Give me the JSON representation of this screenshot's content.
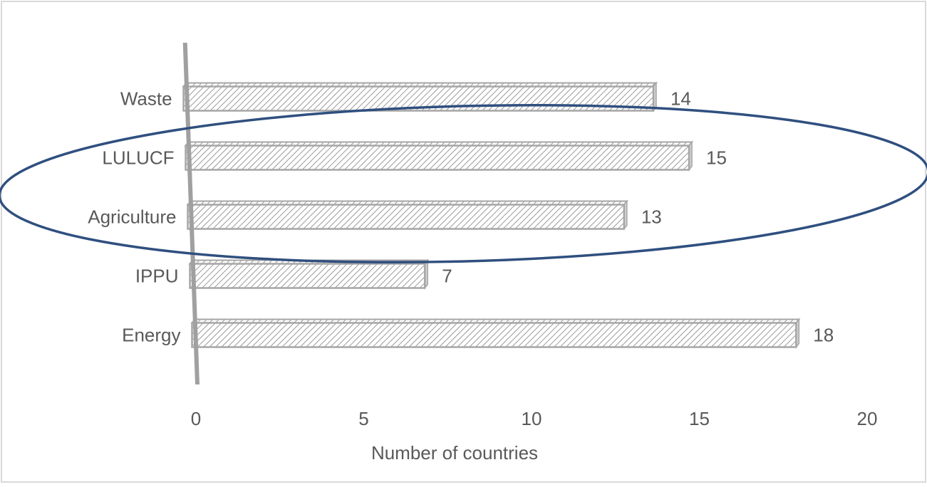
{
  "chart_data": {
    "type": "bar",
    "orientation": "horizontal",
    "categories": [
      "Energy",
      "IPPU",
      "Agriculture",
      "LULUCF",
      "Waste"
    ],
    "values": [
      18,
      7,
      13,
      15,
      14
    ],
    "title": "",
    "xlabel": "Number of countries",
    "ylabel": "",
    "xlim": [
      0,
      20
    ],
    "x_ticks": [
      0,
      5,
      10,
      15,
      20
    ],
    "grid": false,
    "legend": "none",
    "bar_fill": "diagonal-hatch",
    "highlight": {
      "shape": "ellipse",
      "categories": [
        "LULUCF",
        "Agriculture"
      ],
      "color": "#2f4f7f"
    }
  },
  "colors": {
    "bar_stroke": "#a6a6a6",
    "hatch": "#9a9a9a",
    "axis": "#a0a0a0",
    "text": "#595959",
    "ellipse": "#2f4f7f"
  }
}
